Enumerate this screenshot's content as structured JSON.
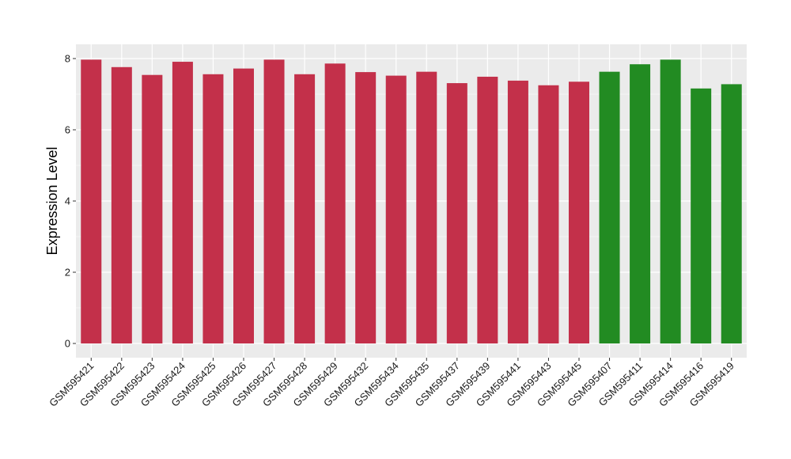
{
  "chart_data": {
    "type": "bar",
    "title": "",
    "xlabel": "",
    "ylabel": "Expression Level",
    "ylim": [
      0,
      8.3
    ],
    "y_ticks": [
      0,
      2,
      4,
      6,
      8
    ],
    "grid": true,
    "legend": "none",
    "colors": {
      "group_a": "#c3304a",
      "group_b": "#228b22",
      "panel": "#ebebeb",
      "grid": "#ffffff"
    },
    "categories": [
      "GSM595421",
      "GSM595422",
      "GSM595423",
      "GSM595424",
      "GSM595425",
      "GSM595426",
      "GSM595427",
      "GSM595428",
      "GSM595429",
      "GSM595432",
      "GSM595434",
      "GSM595435",
      "GSM595437",
      "GSM595439",
      "GSM595441",
      "GSM595443",
      "GSM595445",
      "GSM595407",
      "GSM595411",
      "GSM595414",
      "GSM595416",
      "GSM595419"
    ],
    "values": [
      7.97,
      7.76,
      7.54,
      7.91,
      7.56,
      7.72,
      7.97,
      7.56,
      7.86,
      7.62,
      7.52,
      7.63,
      7.31,
      7.49,
      7.38,
      7.25,
      7.35,
      7.63,
      7.84,
      7.97,
      7.16,
      7.28
    ],
    "groups": [
      "a",
      "a",
      "a",
      "a",
      "a",
      "a",
      "a",
      "a",
      "a",
      "a",
      "a",
      "a",
      "a",
      "a",
      "a",
      "a",
      "a",
      "b",
      "b",
      "b",
      "b",
      "b"
    ]
  }
}
